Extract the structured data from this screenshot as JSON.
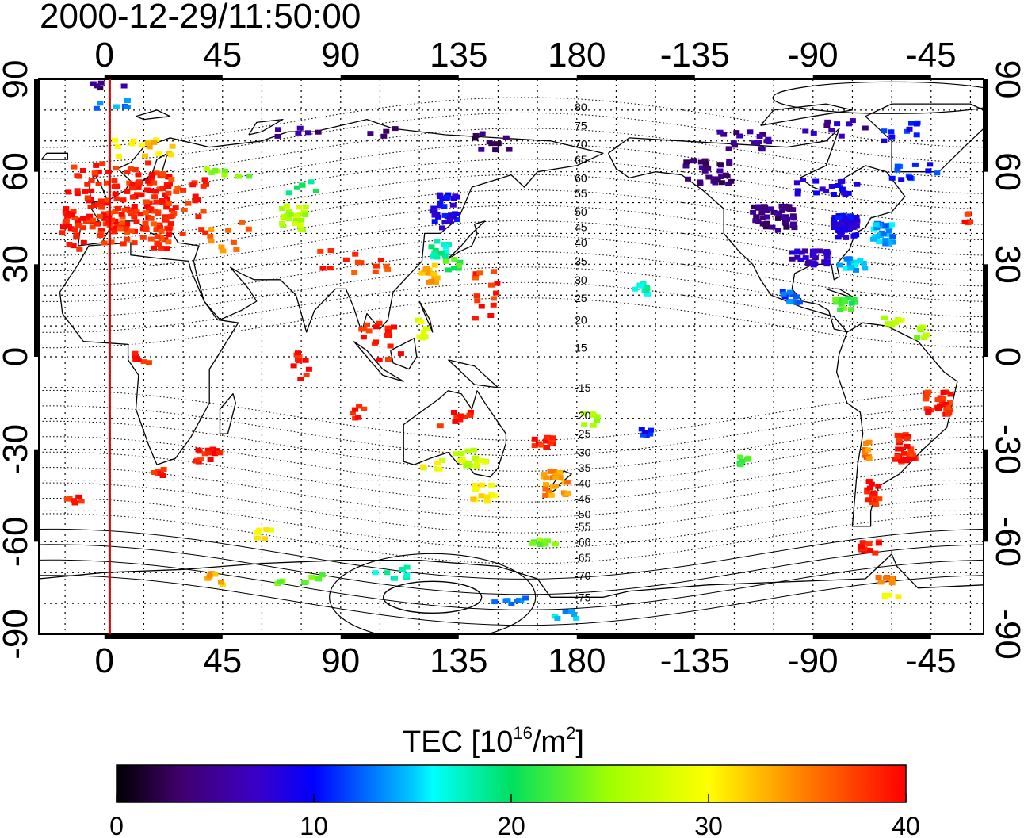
{
  "timestamp": "2000-12-29/11:50:00",
  "colorbar": {
    "title_main": "TEC  [10",
    "title_exp1": "16",
    "title_mid": "/m",
    "title_exp2": "2",
    "title_end": "]",
    "ticks": [
      "0",
      "10",
      "20",
      "30",
      "40"
    ],
    "min": 0,
    "max": 40,
    "colormap": "jet"
  },
  "map": {
    "projection": "equirectangular",
    "lon_range": [
      -25,
      335
    ],
    "lat_range": [
      -90,
      90
    ],
    "top_tick_labels": [
      "0",
      "45",
      "90",
      "135",
      "180",
      "-135",
      "-90",
      "-45"
    ],
    "bottom_tick_labels": [
      "0",
      "45",
      "90",
      "135",
      "180",
      "-135",
      "-90",
      "-45"
    ],
    "left_tick_labels": [
      "90",
      "60",
      "30",
      "0",
      "-30",
      "-60",
      "-90"
    ],
    "right_tick_labels": [
      "90",
      "60",
      "30",
      "0",
      "-30",
      "-60",
      "-90"
    ],
    "grid": "dotted, 15 deg lon x 10 deg lat",
    "terminator_meridian_lon": 2,
    "terminator_color": "#e00000",
    "contour_labels": [
      {
        "text": "80",
        "lon": 178,
        "lat": 81
      },
      {
        "text": "75",
        "lon": 178,
        "lat": 75
      },
      {
        "text": "70",
        "lon": 178,
        "lat": 69
      },
      {
        "text": "65",
        "lon": 178,
        "lat": 64
      },
      {
        "text": "60",
        "lon": 178,
        "lat": 58
      },
      {
        "text": "55",
        "lon": 178,
        "lat": 53
      },
      {
        "text": "50",
        "lon": 178,
        "lat": 47
      },
      {
        "text": "45",
        "lon": 178,
        "lat": 42
      },
      {
        "text": "40",
        "lon": 178,
        "lat": 37
      },
      {
        "text": "35",
        "lon": 178,
        "lat": 31
      },
      {
        "text": "30",
        "lon": 178,
        "lat": 25
      },
      {
        "text": "25",
        "lon": 178,
        "lat": 19
      },
      {
        "text": "20",
        "lon": 178,
        "lat": 12
      },
      {
        "text": "15",
        "lon": 178,
        "lat": 3
      },
      {
        "text": "-15",
        "lon": 178,
        "lat": -10
      },
      {
        "text": "-20",
        "lon": 178,
        "lat": -19
      },
      {
        "text": "-25",
        "lon": 178,
        "lat": -25
      },
      {
        "text": "-30",
        "lon": 178,
        "lat": -31
      },
      {
        "text": "-35",
        "lon": 178,
        "lat": -36
      },
      {
        "text": "-40",
        "lon": 178,
        "lat": -41
      },
      {
        "text": "-45",
        "lon": 178,
        "lat": -46
      },
      {
        "text": "-50",
        "lon": 178,
        "lat": -51
      },
      {
        "text": "-55",
        "lon": 178,
        "lat": -55
      },
      {
        "text": "-60",
        "lon": 178,
        "lat": -60
      },
      {
        "text": "-65",
        "lon": 178,
        "lat": -65
      },
      {
        "text": "-70",
        "lon": 178,
        "lat": -71
      },
      {
        "text": "-75",
        "lon": 178,
        "lat": -78
      }
    ],
    "tec_clusters": [
      {
        "lon": 5,
        "lat": 52,
        "w": 40,
        "h": 22,
        "tec": 39,
        "n": 140
      },
      {
        "lon": 12,
        "lat": 42,
        "w": 28,
        "h": 14,
        "tec": 38,
        "n": 60
      },
      {
        "lon": -12,
        "lat": 40,
        "w": 10,
        "h": 12,
        "tec": 39,
        "n": 14
      },
      {
        "lon": 30,
        "lat": 50,
        "w": 20,
        "h": 22,
        "tec": 38,
        "n": 30
      },
      {
        "lon": 15,
        "lat": 68,
        "w": 25,
        "h": 6,
        "tec": 32,
        "n": 16
      },
      {
        "lon": 5,
        "lat": 82,
        "w": 16,
        "h": 3,
        "tec": 14,
        "n": 6
      },
      {
        "lon": 2,
        "lat": 88,
        "w": 16,
        "h": 2,
        "tec": 4,
        "n": 5
      },
      {
        "lon": 48,
        "lat": 60,
        "w": 20,
        "h": 5,
        "tec": 24,
        "n": 8
      },
      {
        "lon": 48,
        "lat": 38,
        "w": 16,
        "h": 12,
        "tec": 35,
        "n": 10
      },
      {
        "lon": 72,
        "lat": 45,
        "w": 10,
        "h": 8,
        "tec": 26,
        "n": 24
      },
      {
        "lon": 75,
        "lat": 55,
        "w": 12,
        "h": 4,
        "tec": 20,
        "n": 6
      },
      {
        "lon": 75,
        "lat": 73,
        "w": 20,
        "h": 5,
        "tec": 5,
        "n": 6
      },
      {
        "lon": 105,
        "lat": 73,
        "w": 14,
        "h": 3,
        "tec": 3,
        "n": 4
      },
      {
        "lon": 95,
        "lat": 30,
        "w": 30,
        "h": 10,
        "tec": 38,
        "n": 14
      },
      {
        "lon": 130,
        "lat": 47,
        "w": 10,
        "h": 12,
        "tec": 9,
        "n": 36
      },
      {
        "lon": 128,
        "lat": 35,
        "w": 7,
        "h": 6,
        "tec": 18,
        "n": 14
      },
      {
        "lon": 124,
        "lat": 27,
        "w": 6,
        "h": 6,
        "tec": 33,
        "n": 14
      },
      {
        "lon": 133,
        "lat": 30,
        "w": 6,
        "h": 4,
        "tec": 22,
        "n": 8
      },
      {
        "lon": 148,
        "lat": 70,
        "w": 14,
        "h": 6,
        "tec": 4,
        "n": 10
      },
      {
        "lon": 145,
        "lat": 20,
        "w": 10,
        "h": 16,
        "tec": 38,
        "n": 14
      },
      {
        "lon": 122,
        "lat": 10,
        "w": 6,
        "h": 10,
        "tec": 28,
        "n": 8
      },
      {
        "lon": 105,
        "lat": 5,
        "w": 16,
        "h": 12,
        "tec": 39,
        "n": 18
      },
      {
        "lon": 75,
        "lat": -5,
        "w": 6,
        "h": 14,
        "tec": 39,
        "n": 10
      },
      {
        "lon": 97,
        "lat": -18,
        "w": 6,
        "h": 4,
        "tec": 39,
        "n": 6
      },
      {
        "lon": 135,
        "lat": -20,
        "w": 14,
        "h": 5,
        "tec": 39,
        "n": 10
      },
      {
        "lon": 140,
        "lat": -33,
        "w": 12,
        "h": 6,
        "tec": 27,
        "n": 18
      },
      {
        "lon": 145,
        "lat": -44,
        "w": 10,
        "h": 6,
        "tec": 31,
        "n": 14
      },
      {
        "lon": 125,
        "lat": -35,
        "w": 10,
        "h": 3,
        "tec": 29,
        "n": 6
      },
      {
        "lon": 167,
        "lat": -28,
        "w": 8,
        "h": 4,
        "tec": 39,
        "n": 14
      },
      {
        "lon": 172,
        "lat": -41,
        "w": 10,
        "h": 8,
        "tec": 34,
        "n": 24
      },
      {
        "lon": 185,
        "lat": -20,
        "w": 6,
        "h": 5,
        "tec": 26,
        "n": 8
      },
      {
        "lon": 206,
        "lat": -24,
        "w": 5,
        "h": 3,
        "tec": 10,
        "n": 6
      },
      {
        "lon": 245,
        "lat": -34,
        "w": 6,
        "h": 3,
        "tec": 22,
        "n": 6
      },
      {
        "lon": 168,
        "lat": -60,
        "w": 10,
        "h": 3,
        "tec": 24,
        "n": 8
      },
      {
        "lon": 60,
        "lat": -58,
        "w": 8,
        "h": 4,
        "tec": 30,
        "n": 6
      },
      {
        "lon": 40,
        "lat": -72,
        "w": 14,
        "h": 4,
        "tec": 33,
        "n": 8
      },
      {
        "lon": 75,
        "lat": -72,
        "w": 20,
        "h": 4,
        "tec": 23,
        "n": 10
      },
      {
        "lon": 110,
        "lat": -70,
        "w": 14,
        "h": 4,
        "tec": 17,
        "n": 8
      },
      {
        "lon": 155,
        "lat": -79,
        "w": 16,
        "h": 3,
        "tec": 14,
        "n": 8
      },
      {
        "lon": 175,
        "lat": -84,
        "w": 10,
        "h": 3,
        "tec": 15,
        "n": 6
      },
      {
        "lon": 40,
        "lat": -32,
        "w": 10,
        "h": 5,
        "tec": 39,
        "n": 16
      },
      {
        "lon": 20,
        "lat": -38,
        "w": 8,
        "h": 4,
        "tec": 39,
        "n": 6
      },
      {
        "lon": -12,
        "lat": -45,
        "w": 8,
        "h": 5,
        "tec": 39,
        "n": 6
      },
      {
        "lon": 15,
        "lat": 0,
        "w": 8,
        "h": 4,
        "tec": 39,
        "n": 6
      },
      {
        "lon": 245,
        "lat": 70,
        "w": 22,
        "h": 6,
        "tec": 5,
        "n": 18
      },
      {
        "lon": 278,
        "lat": 74,
        "w": 24,
        "h": 6,
        "tec": 6,
        "n": 10
      },
      {
        "lon": 305,
        "lat": 73,
        "w": 18,
        "h": 6,
        "tec": 10,
        "n": 10
      },
      {
        "lon": 310,
        "lat": 60,
        "w": 20,
        "h": 5,
        "tec": 11,
        "n": 12
      },
      {
        "lon": 230,
        "lat": 60,
        "w": 18,
        "h": 8,
        "tec": 4,
        "n": 30
      },
      {
        "lon": 275,
        "lat": 55,
        "w": 26,
        "h": 5,
        "tec": 8,
        "n": 18
      },
      {
        "lon": 255,
        "lat": 45,
        "w": 16,
        "h": 8,
        "tec": 4,
        "n": 50
      },
      {
        "lon": 282,
        "lat": 42,
        "w": 10,
        "h": 8,
        "tec": 9,
        "n": 50
      },
      {
        "lon": 297,
        "lat": 40,
        "w": 8,
        "h": 7,
        "tec": 14,
        "n": 30
      },
      {
        "lon": 268,
        "lat": 32,
        "w": 16,
        "h": 5,
        "tec": 7,
        "n": 30
      },
      {
        "lon": 285,
        "lat": 30,
        "w": 10,
        "h": 4,
        "tec": 15,
        "n": 16
      },
      {
        "lon": 262,
        "lat": 20,
        "w": 8,
        "h": 5,
        "tec": 12,
        "n": 14
      },
      {
        "lon": 282,
        "lat": 17,
        "w": 10,
        "h": 4,
        "tec": 22,
        "n": 14
      },
      {
        "lon": 300,
        "lat": 12,
        "w": 8,
        "h": 4,
        "tec": 27,
        "n": 8
      },
      {
        "lon": 205,
        "lat": 22,
        "w": 6,
        "h": 4,
        "tec": 17,
        "n": 10
      },
      {
        "lon": 318,
        "lat": -15,
        "w": 10,
        "h": 8,
        "tec": 39,
        "n": 30
      },
      {
        "lon": 305,
        "lat": -30,
        "w": 8,
        "h": 10,
        "tec": 39,
        "n": 32
      },
      {
        "lon": 291,
        "lat": -30,
        "w": 4,
        "h": 6,
        "tec": 35,
        "n": 10
      },
      {
        "lon": 293,
        "lat": -45,
        "w": 5,
        "h": 10,
        "tec": 39,
        "n": 16
      },
      {
        "lon": 292,
        "lat": -62,
        "w": 8,
        "h": 4,
        "tec": 39,
        "n": 14
      },
      {
        "lon": 298,
        "lat": -72,
        "w": 6,
        "h": 3,
        "tec": 35,
        "n": 8
      },
      {
        "lon": 300,
        "lat": -78,
        "w": 6,
        "h": 2,
        "tec": 30,
        "n": 4
      },
      {
        "lon": 328,
        "lat": 45,
        "w": 4,
        "h": 6,
        "tec": 39,
        "n": 6
      },
      {
        "lon": 312,
        "lat": 8,
        "w": 6,
        "h": 4,
        "tec": 25,
        "n": 6
      }
    ]
  }
}
